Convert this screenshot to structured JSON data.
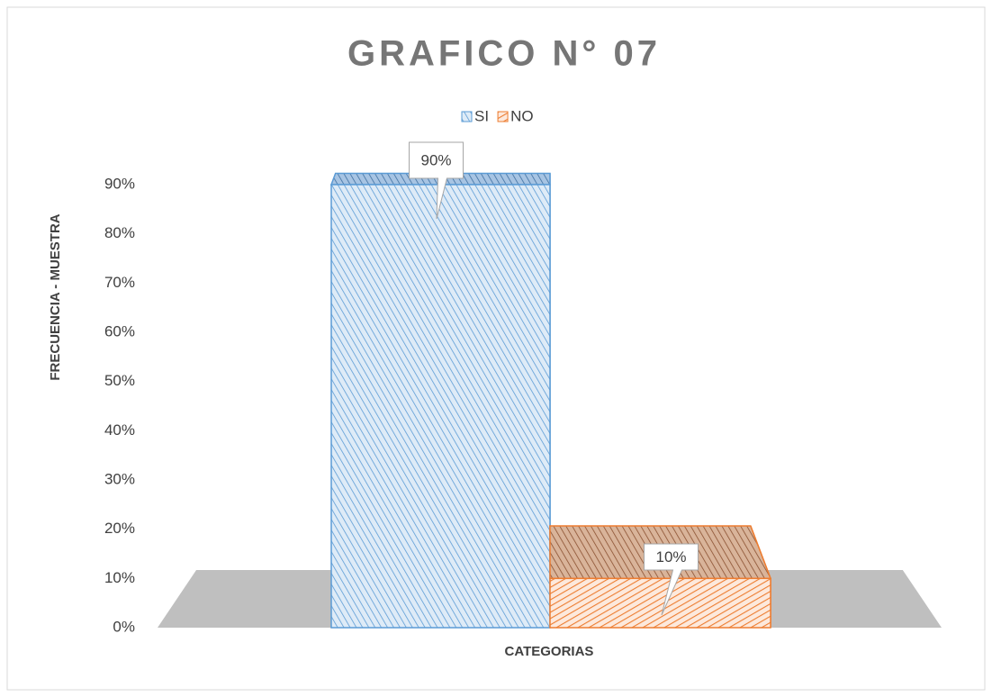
{
  "chart_data": {
    "type": "bar3d",
    "title": "GRAFICO N° 07",
    "categories": [
      null
    ],
    "series": [
      {
        "name": "SI",
        "color": "#5b9bd5",
        "values": [
          90
        ],
        "value_labels": [
          "90%"
        ]
      },
      {
        "name": "NO",
        "color": "#ed7d31",
        "values": [
          10
        ],
        "value_labels": [
          "10%"
        ]
      }
    ],
    "x_label": "CATEGORIAS",
    "y_label": "FRECUENCIA - MUESTRA",
    "ylim": [
      0,
      90
    ],
    "yticks": [
      {
        "value": 0,
        "label": "0%"
      },
      {
        "value": 10,
        "label": "10%"
      },
      {
        "value": 20,
        "label": "20%"
      },
      {
        "value": 30,
        "label": "30%"
      },
      {
        "value": 40,
        "label": "40%"
      },
      {
        "value": 50,
        "label": "50%"
      },
      {
        "value": 60,
        "label": "60%"
      },
      {
        "value": 70,
        "label": "70%"
      },
      {
        "value": 80,
        "label": "80%"
      },
      {
        "value": 90,
        "label": "90%"
      }
    ],
    "legend": "top",
    "grid": false
  }
}
